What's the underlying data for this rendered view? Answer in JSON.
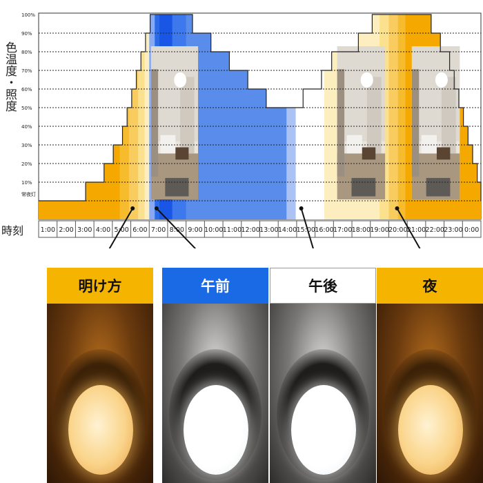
{
  "chart_data": {
    "type": "area",
    "ylabel": "色温度・照度",
    "xlabel": "時刻",
    "y_ticks": [
      "100%",
      "90%",
      "80%",
      "70%",
      "60%",
      "50%",
      "40%",
      "30%",
      "20%",
      "10%",
      "常夜灯"
    ],
    "x_ticks": [
      "1:00",
      "2:00",
      "3:00",
      "4:00",
      "5:00",
      "6:00",
      "7:00",
      "8:00",
      "9:00",
      "10:00",
      "11:00",
      "12:00",
      "13:00",
      "14:00",
      "15:00",
      "16:00",
      "17:00",
      "18:00",
      "19:00",
      "20:00",
      "21:00",
      "22:00",
      "23:00",
      "0:00"
    ],
    "grid": true,
    "illuminance_percent": [
      [
        0,
        0
      ],
      [
        2.55,
        0
      ],
      [
        2.55,
        10
      ],
      [
        3.55,
        10
      ],
      [
        3.55,
        20
      ],
      [
        4.05,
        20
      ],
      [
        4.05,
        30
      ],
      [
        4.55,
        30
      ],
      [
        4.55,
        40
      ],
      [
        4.8,
        40
      ],
      [
        4.8,
        50
      ],
      [
        5.05,
        50
      ],
      [
        5.05,
        60
      ],
      [
        5.3,
        60
      ],
      [
        5.3,
        70
      ],
      [
        5.55,
        70
      ],
      [
        5.55,
        80
      ],
      [
        5.8,
        80
      ],
      [
        5.8,
        90
      ],
      [
        6.05,
        90
      ],
      [
        6.05,
        100
      ],
      [
        8.35,
        100
      ],
      [
        8.35,
        90
      ],
      [
        9.35,
        90
      ],
      [
        9.35,
        80
      ],
      [
        10.35,
        80
      ],
      [
        10.35,
        70
      ],
      [
        11.35,
        70
      ],
      [
        11.35,
        60
      ],
      [
        12.35,
        60
      ],
      [
        12.35,
        50
      ],
      [
        14.35,
        50
      ],
      [
        14.35,
        60
      ],
      [
        15.35,
        60
      ],
      [
        15.35,
        70
      ],
      [
        15.9,
        70
      ],
      [
        15.9,
        80
      ],
      [
        17.35,
        80
      ],
      [
        17.35,
        90
      ],
      [
        18.1,
        90
      ],
      [
        18.1,
        100
      ],
      [
        21.3,
        100
      ],
      [
        21.3,
        90
      ],
      [
        21.8,
        90
      ],
      [
        21.8,
        80
      ],
      [
        22.3,
        80
      ],
      [
        22.3,
        70
      ],
      [
        22.55,
        70
      ],
      [
        22.55,
        60
      ],
      [
        22.8,
        60
      ],
      [
        22.8,
        50
      ],
      [
        23.05,
        50
      ],
      [
        23.05,
        40
      ],
      [
        23.3,
        40
      ],
      [
        23.3,
        30
      ],
      [
        23.55,
        30
      ],
      [
        23.55,
        20
      ],
      [
        23.8,
        20
      ],
      [
        23.8,
        10
      ],
      [
        24.0,
        10
      ],
      [
        24.0,
        0
      ]
    ],
    "color_bands": [
      {
        "x0": 0,
        "x1": 4.4,
        "color": "#f5a800"
      },
      {
        "x0": 4.4,
        "x1": 4.9,
        "color": "#f7bb2e"
      },
      {
        "x0": 4.9,
        "x1": 5.4,
        "color": "#f9cc60"
      },
      {
        "x0": 5.4,
        "x1": 5.75,
        "color": "#fbe08e"
      },
      {
        "x0": 5.75,
        "x1": 6.0,
        "color": "#fdeec0"
      },
      {
        "x0": 6.0,
        "x1": 6.3,
        "color": "#88aaf2"
      },
      {
        "x0": 6.3,
        "x1": 6.55,
        "color": "#2b6be8"
      },
      {
        "x0": 6.55,
        "x1": 7.25,
        "color": "#1a56e6"
      },
      {
        "x0": 7.25,
        "x1": 8.0,
        "color": "#3d79ec"
      },
      {
        "x0": 8.0,
        "x1": 13.45,
        "color": "#5a8ceb"
      },
      {
        "x0": 13.45,
        "x1": 13.95,
        "color": "#aac3f4"
      },
      {
        "x0": 13.95,
        "x1": 15.5,
        "color": "#ffffff"
      },
      {
        "x0": 15.5,
        "x1": 18.5,
        "color": "#fdeec0"
      },
      {
        "x0": 18.5,
        "x1": 19.0,
        "color": "#fbe08e"
      },
      {
        "x0": 19.0,
        "x1": 19.5,
        "color": "#f9cc60"
      },
      {
        "x0": 19.5,
        "x1": 19.9,
        "color": "#f7bb2e"
      },
      {
        "x0": 19.9,
        "x1": 24.0,
        "color": "#f5a800"
      }
    ],
    "markers": [
      {
        "x": 5.1,
        "panel": 0
      },
      {
        "x": 6.4,
        "panel": 1
      },
      {
        "x": 14.25,
        "panel": 2
      },
      {
        "x": 19.45,
        "panel": 3
      }
    ]
  },
  "photos": [
    {
      "name": "room-photo-morning",
      "x0": 6.1,
      "x1": 8.65
    },
    {
      "name": "room-photo-evening",
      "x0": 16.2,
      "x1": 18.8
    },
    {
      "name": "room-photo-night",
      "x0": 20.25,
      "x1": 22.85
    }
  ],
  "panels": [
    {
      "label": "明け方",
      "header_bg": "#f5b400",
      "header_fg": "#111111",
      "light": "warm"
    },
    {
      "label": "午前",
      "header_bg": "#1a6ae6",
      "header_fg": "#ffffff",
      "light": "cool"
    },
    {
      "label": "午後",
      "header_bg": "#ffffff",
      "header_fg": "#111111",
      "light": "cool"
    },
    {
      "label": "夜",
      "header_bg": "#f5b400",
      "header_fg": "#111111",
      "light": "warm"
    }
  ]
}
